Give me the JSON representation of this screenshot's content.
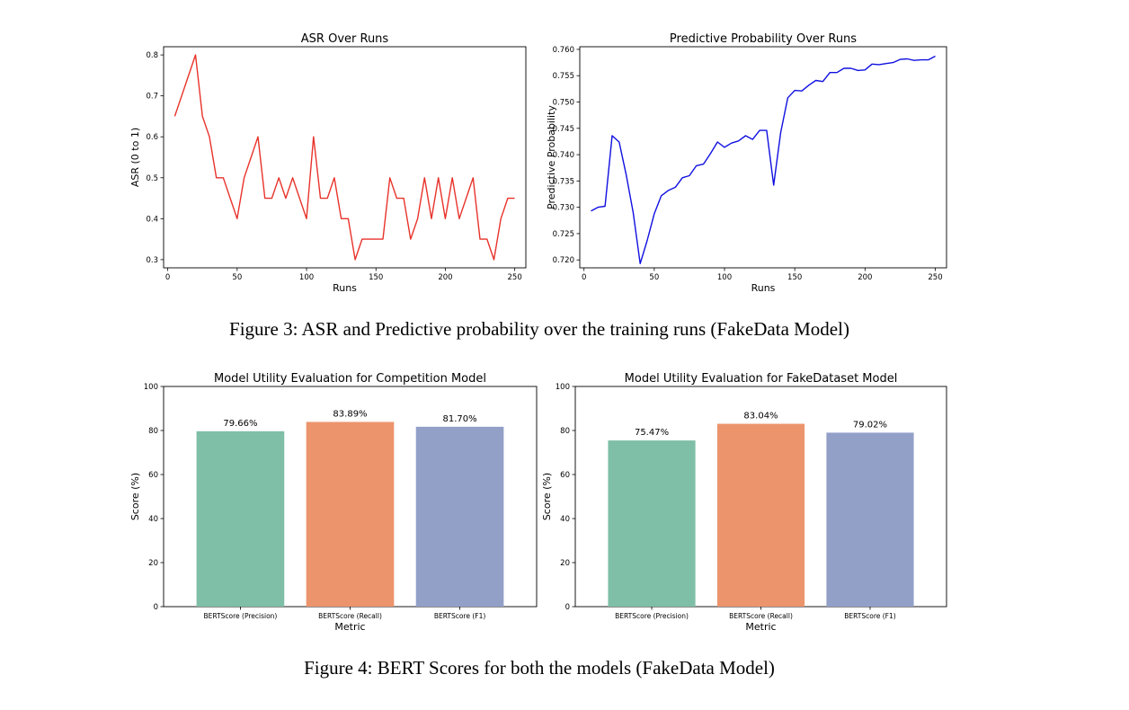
{
  "figure3_caption": "Figure 3: ASR and Predictive probability over the training runs (FakeData Model)",
  "figure4_caption": "Figure 4: BERT Scores for both the models (FakeData Model)",
  "chart_data": [
    {
      "id": "asr",
      "type": "line",
      "title": "ASR Over Runs",
      "xlabel": "Runs",
      "ylabel": "ASR (0 to 1)",
      "xlim": [
        -3,
        258
      ],
      "ylim": [
        0.28,
        0.82
      ],
      "xticks": [
        0,
        50,
        100,
        150,
        200,
        250
      ],
      "yticks": [
        0.3,
        0.4,
        0.5,
        0.6,
        0.7,
        0.8
      ],
      "tick_decimals": 1,
      "color": "#e8322a",
      "grid": false,
      "series": [
        {
          "x": [
            5,
            10,
            15,
            20,
            25,
            30,
            35,
            40,
            45,
            50,
            55,
            60,
            65,
            70,
            75,
            80,
            85,
            90,
            95,
            100,
            105,
            110,
            115,
            120,
            125,
            130,
            135,
            140,
            145,
            150,
            155,
            160,
            165,
            170,
            175,
            180,
            185,
            190,
            195,
            200,
            205,
            210,
            215,
            220,
            225,
            230,
            235,
            240,
            245,
            250
          ],
          "values": [
            0.65,
            0.7,
            0.75,
            0.8,
            0.65,
            0.6,
            0.5,
            0.5,
            0.45,
            0.4,
            0.5,
            0.55,
            0.6,
            0.45,
            0.45,
            0.5,
            0.45,
            0.5,
            0.45,
            0.4,
            0.6,
            0.45,
            0.45,
            0.5,
            0.4,
            0.4,
            0.3,
            0.35,
            0.35,
            0.35,
            0.35,
            0.5,
            0.45,
            0.45,
            0.35,
            0.4,
            0.5,
            0.4,
            0.5,
            0.4,
            0.5,
            0.4,
            0.45,
            0.5,
            0.35,
            0.35,
            0.3,
            0.4,
            0.45,
            0.45
          ]
        }
      ]
    },
    {
      "id": "prob",
      "type": "line",
      "title": "Predictive Probability Over Runs",
      "xlabel": "Runs",
      "ylabel": "Predictive Probability",
      "xlim": [
        -3,
        258
      ],
      "ylim": [
        0.7185,
        0.7605
      ],
      "xticks": [
        0,
        50,
        100,
        150,
        200,
        250
      ],
      "yticks": [
        0.72,
        0.725,
        0.73,
        0.735,
        0.74,
        0.745,
        0.75,
        0.755,
        0.76
      ],
      "tick_decimals": 3,
      "color": "#1010e0",
      "grid": false,
      "series": [
        {
          "x": [
            5,
            10,
            15,
            20,
            25,
            30,
            35,
            40,
            45,
            50,
            55,
            60,
            65,
            70,
            75,
            80,
            85,
            90,
            95,
            100,
            105,
            110,
            115,
            120,
            125,
            130,
            135,
            140,
            145,
            150,
            155,
            160,
            165,
            170,
            175,
            180,
            185,
            190,
            195,
            200,
            205,
            210,
            215,
            220,
            225,
            230,
            235,
            240,
            245,
            250
          ],
          "values": [
            0.7293,
            0.73,
            0.7302,
            0.7436,
            0.7424,
            0.7362,
            0.729,
            0.7193,
            0.7237,
            0.7288,
            0.7322,
            0.7332,
            0.7338,
            0.7356,
            0.736,
            0.7379,
            0.7382,
            0.7402,
            0.7424,
            0.7414,
            0.7422,
            0.7426,
            0.7436,
            0.7429,
            0.7446,
            0.7446,
            0.7342,
            0.7442,
            0.7508,
            0.7522,
            0.7521,
            0.7532,
            0.7541,
            0.7539,
            0.7556,
            0.7556,
            0.7564,
            0.7564,
            0.756,
            0.7561,
            0.7572,
            0.7571,
            0.7573,
            0.7575,
            0.7581,
            0.7582,
            0.7579,
            0.758,
            0.758,
            0.7587
          ]
        }
      ]
    },
    {
      "id": "bert-competition",
      "type": "bar",
      "title": "Model Utility Evaluation for Competition Model",
      "xlabel": "Metric",
      "ylabel": "Score (%)",
      "ylim": [
        0,
        100
      ],
      "yticks": [
        0,
        20,
        40,
        60,
        80,
        100
      ],
      "tick_decimals": 0,
      "categories": [
        "BERTScore (Precision)",
        "BERTScore (Recall)",
        "BERTScore (F1)"
      ],
      "values": [
        79.66,
        83.89,
        81.7
      ],
      "data_labels": [
        "79.66%",
        "83.89%",
        "81.70%"
      ],
      "colors": [
        "#7fbfa7",
        "#ec946c",
        "#92a0c8"
      ]
    },
    {
      "id": "bert-fakedataset",
      "type": "bar",
      "title": "Model Utility Evaluation for FakeDataset Model",
      "xlabel": "Metric",
      "ylabel": "Score (%)",
      "ylim": [
        0,
        100
      ],
      "yticks": [
        0,
        20,
        40,
        60,
        80,
        100
      ],
      "tick_decimals": 0,
      "categories": [
        "BERTScore (Precision)",
        "BERTScore (Recall)",
        "BERTScore (F1)"
      ],
      "values": [
        75.47,
        83.04,
        79.02
      ],
      "data_labels": [
        "75.47%",
        "83.04%",
        "79.02%"
      ],
      "colors": [
        "#7fbfa7",
        "#ec946c",
        "#92a0c8"
      ]
    }
  ]
}
